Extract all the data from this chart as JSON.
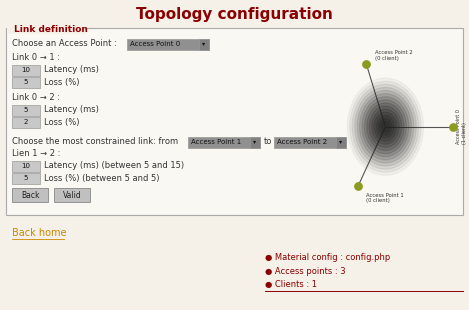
{
  "title": "Topology configuration",
  "title_color": "#8b0000",
  "bg_color": "#f5f0e8",
  "panel_bg": "#faf8f2",
  "border_color": "#aaaaaa",
  "section_title": "Link definition",
  "section_title_color": "#8b0000",
  "body_text_color": "#333333",
  "link_color": "#cc8800",
  "bullet_color": "#8b0000",
  "buttons": [
    "Back",
    "Valid"
  ],
  "back_home": "Back home",
  "bullets": [
    "Material config : config.php",
    "Access points : 3",
    "Clients : 1"
  ]
}
